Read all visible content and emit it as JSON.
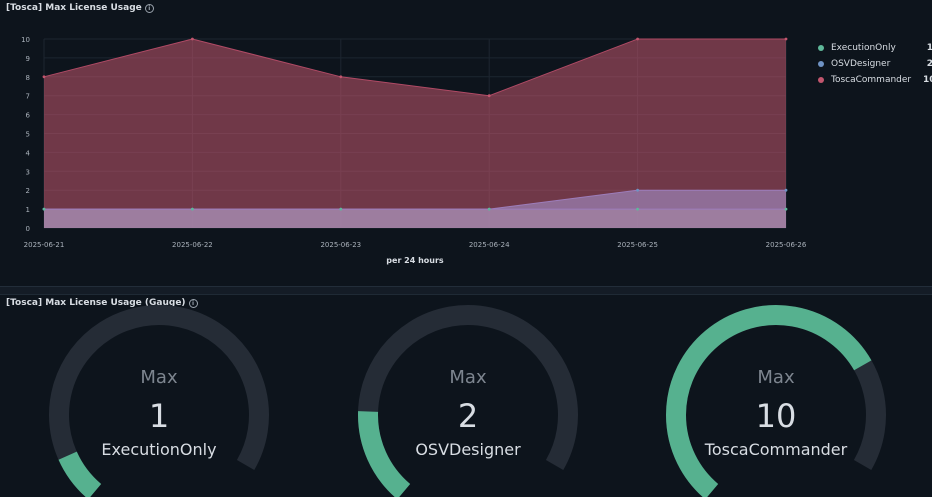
{
  "panels": {
    "chart_title": "[Tosca] Max License Usage",
    "gauge_title": "[Tosca] Max License Usage (Gauge)",
    "info_glyph": "i"
  },
  "colors": {
    "background": "#0d141c",
    "grid": "#1d2630",
    "ExecutionOnly": "#5fb89a",
    "OSVDesigner": "#6f93c4",
    "ToscaCommander": "#c2566e",
    "gauge_track": "#252c36",
    "gauge_fill": "#56b18f"
  },
  "chart_data": {
    "type": "area",
    "x": [
      "2025-06-21",
      "2025-06-22",
      "2025-06-23",
      "2025-06-24",
      "2025-06-25",
      "2025-06-26"
    ],
    "xlabel": "per 24 hours",
    "ylim": [
      0,
      10
    ],
    "yticks": [
      0,
      1,
      2,
      3,
      4,
      5,
      6,
      7,
      8,
      9,
      10
    ],
    "grid": true,
    "legend_position": "right",
    "series": [
      {
        "name": "ExecutionOnly",
        "values": [
          1,
          1,
          1,
          1,
          1,
          1
        ],
        "legend_value": "1",
        "color": "#5fb89a"
      },
      {
        "name": "OSVDesigner",
        "values": [
          1,
          1,
          1,
          1,
          2,
          2
        ],
        "legend_value": "2",
        "color": "#6f93c4"
      },
      {
        "name": "ToscaCommander",
        "values": [
          8,
          10,
          8,
          7,
          10,
          10
        ],
        "legend_value": "10",
        "color": "#c2566e"
      }
    ]
  },
  "gauges": [
    {
      "label": "Max",
      "value": "1",
      "name": "ExecutionOnly",
      "fraction": 0.1
    },
    {
      "label": "Max",
      "value": "2",
      "name": "OSVDesigner",
      "fraction": 0.2
    },
    {
      "label": "Max",
      "value": "10",
      "name": "ToscaCommander",
      "fraction": 0.77
    }
  ]
}
